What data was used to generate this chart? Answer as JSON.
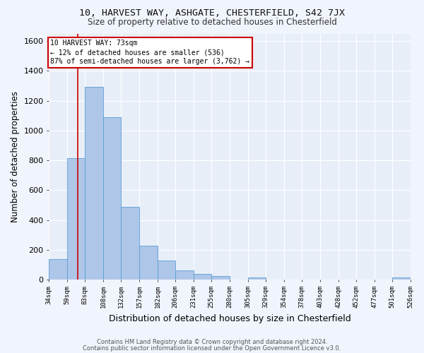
{
  "title_line1": "10, HARVEST WAY, ASHGATE, CHESTERFIELD, S42 7JX",
  "title_line2": "Size of property relative to detached houses in Chesterfield",
  "xlabel": "Distribution of detached houses by size in Chesterfield",
  "ylabel": "Number of detached properties",
  "footnote1": "Contains HM Land Registry data © Crown copyright and database right 2024.",
  "footnote2": "Contains public sector information licensed under the Open Government Licence v3.0.",
  "annotation_line1": "10 HARVEST WAY: 73sqm",
  "annotation_line2": "← 12% of detached houses are smaller (536)",
  "annotation_line3": "87% of semi-detached houses are larger (3,762) →",
  "bar_color": "#aec6e8",
  "bar_edge_color": "#5a9fd4",
  "vline_x": 73,
  "vline_color": "#cc0000",
  "bin_edges": [
    34,
    59,
    83,
    108,
    132,
    157,
    182,
    206,
    231,
    255,
    280,
    305,
    329,
    354,
    378,
    403,
    428,
    452,
    477,
    501,
    526
  ],
  "bar_heights": [
    140,
    815,
    1295,
    1090,
    490,
    230,
    130,
    65,
    37,
    27,
    0,
    15,
    0,
    0,
    0,
    0,
    0,
    0,
    0,
    15
  ],
  "ylim": [
    0,
    1650
  ],
  "yticks": [
    0,
    200,
    400,
    600,
    800,
    1000,
    1200,
    1400,
    1600
  ],
  "annotation_box_color": "#cc0000",
  "background_color": "#e8eef8",
  "fig_background_color": "#f0f4fc",
  "grid_color": "#ffffff"
}
